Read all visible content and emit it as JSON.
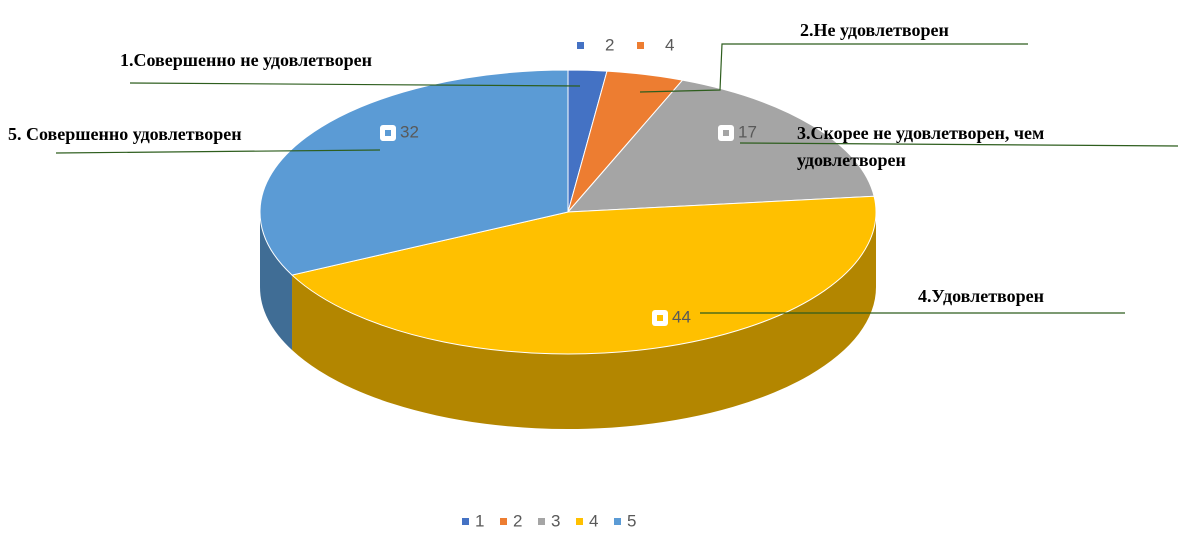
{
  "chart_data": {
    "type": "pie3d",
    "categories": [
      "1",
      "2",
      "3",
      "4",
      "5"
    ],
    "values": [
      2,
      4,
      17,
      44,
      32
    ],
    "colors": [
      "#4472c4",
      "#ed7d31",
      "#a5a5a5",
      "#ffc000",
      "#5b9bd5"
    ],
    "slice_labels": [
      "1.Совершенно не удовлетворен",
      "2.Не удовлетворен",
      [
        "3.Скорее не удовлетворен, чем",
        "удовлетворен"
      ],
      "4.Удовлетворен",
      "5. Совершенно удовлетворен"
    ],
    "legend": "bottom"
  }
}
